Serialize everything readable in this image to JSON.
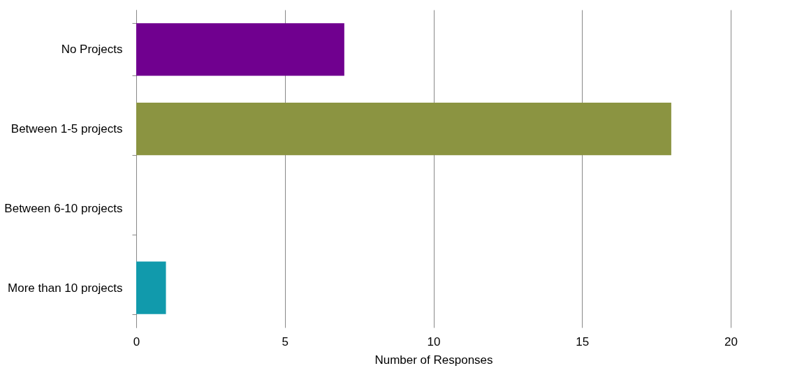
{
  "chart_data": {
    "type": "bar",
    "orientation": "horizontal",
    "categories": [
      "No Projects",
      "Between 1-5 projects",
      "Between 6-10 projects",
      "More than 10 projects"
    ],
    "values": [
      7,
      18,
      0,
      1
    ],
    "colors": [
      "#70008f",
      "#8b9441",
      "#4f81bd",
      "#119aac"
    ],
    "xlabel": "Number of Responses",
    "xlim": [
      0,
      20
    ],
    "xticks": [
      0,
      5,
      10,
      15,
      20
    ],
    "grid": "x"
  }
}
